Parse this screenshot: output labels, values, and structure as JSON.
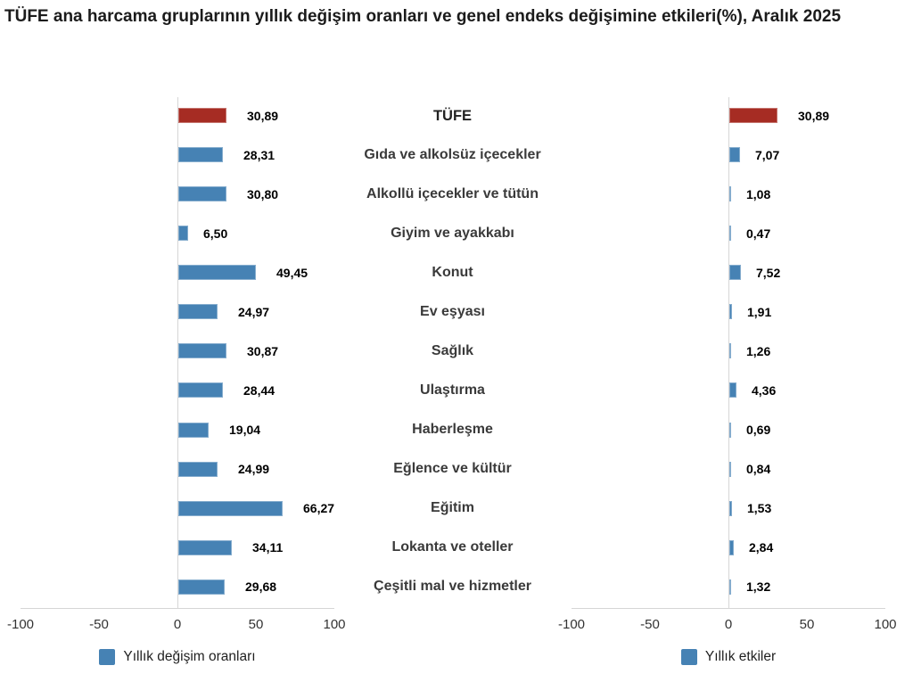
{
  "title": "TÜFE ana harcama gruplarının yıllık değişim oranları ve genel endeks değişimine etkileri(%), Aralık 2025",
  "colors": {
    "highlight_bar": "#a62c23",
    "bar": "#4682b4",
    "axis_line": "#d6d6d6",
    "value_text": "#000000",
    "category_text": "#3a3a3a",
    "tick_text": "#333333"
  },
  "chart_data": [
    {
      "type": "bar",
      "name": "annual-change-rates",
      "title": "",
      "categories": [
        "TÜFE",
        "Gıda ve alkolsüz içecekler",
        "Alkollü içecekler ve tütün",
        "Giyim ve ayakkabı",
        "Konut",
        "Ev eşyası",
        "Sağlık",
        "Ulaştırma",
        "Haberleşme",
        "Eğlence ve kültür",
        "Eğitim",
        "Lokanta ve oteller",
        "Çeşitli mal ve hizmetler"
      ],
      "series": [
        {
          "name": "Yıllık değişim oranları",
          "values": [
            30.89,
            28.31,
            30.8,
            6.5,
            49.45,
            24.97,
            30.87,
            28.44,
            19.04,
            24.99,
            66.27,
            34.11,
            29.68
          ]
        }
      ],
      "value_labels": [
        "30,89",
        "28,31",
        "30,80",
        "6,50",
        "49,45",
        "24,97",
        "30,87",
        "28,44",
        "19,04",
        "24,99",
        "66,27",
        "34,11",
        "29,68"
      ],
      "highlight_index": 0,
      "xlim": [
        -100,
        100
      ],
      "xticks": [
        -100,
        -50,
        0,
        50,
        100
      ],
      "xtick_labels": [
        "-100",
        "-50",
        "0",
        "50",
        "100"
      ],
      "grid": false,
      "legend_position": "bottom"
    },
    {
      "type": "bar",
      "name": "annual-effects",
      "title": "",
      "categories": [
        "TÜFE",
        "Gıda ve alkolsüz içecekler",
        "Alkollü içecekler ve tütün",
        "Giyim ve ayakkabı",
        "Konut",
        "Ev eşyası",
        "Sağlık",
        "Ulaştırma",
        "Haberleşme",
        "Eğlence ve kültür",
        "Eğitim",
        "Lokanta ve oteller",
        "Çeşitli mal ve hizmetler"
      ],
      "series": [
        {
          "name": "Yıllık etkiler",
          "values": [
            30.89,
            7.07,
            1.08,
            0.47,
            7.52,
            1.91,
            1.26,
            4.36,
            0.69,
            0.84,
            1.53,
            2.84,
            1.32
          ]
        }
      ],
      "value_labels": [
        "30,89",
        "7,07",
        "1,08",
        "0,47",
        "7,52",
        "1,91",
        "1,26",
        "4,36",
        "0,69",
        "0,84",
        "1,53",
        "2,84",
        "1,32"
      ],
      "highlight_index": 0,
      "xlim": [
        -100,
        100
      ],
      "xticks": [
        -100,
        -50,
        0,
        50,
        100
      ],
      "xtick_labels": [
        "-100",
        "-50",
        "0",
        "50",
        "100"
      ],
      "grid": false,
      "legend_position": "bottom"
    }
  ]
}
